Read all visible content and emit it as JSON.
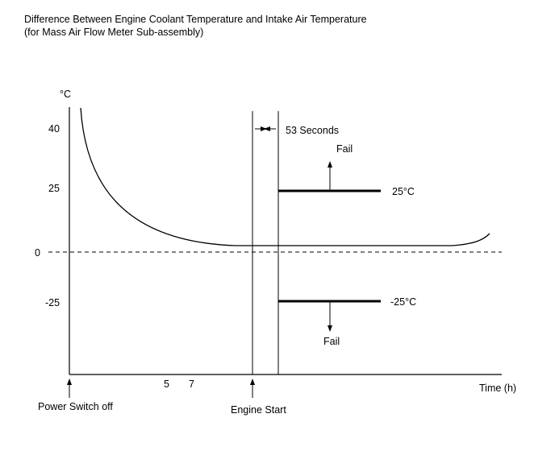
{
  "title": {
    "line1": "Difference Between Engine Coolant Temperature and Intake Air Temperature",
    "line2": "(for Mass Air Flow Meter Sub-assembly)"
  },
  "axes": {
    "y_unit": "°C",
    "y_ticks": [
      "40",
      "25",
      "0",
      "-25"
    ],
    "x_tick_5": "5",
    "x_tick_7": "7",
    "x_label": "Time (h)"
  },
  "annotations": {
    "interval": "53 Seconds",
    "fail_upper": "Fail",
    "fail_lower": "Fail",
    "threshold_upper": "25°C",
    "threshold_lower": "-25°C",
    "event_power_off": "Power Switch off",
    "event_engine_start": "Engine Start"
  }
}
